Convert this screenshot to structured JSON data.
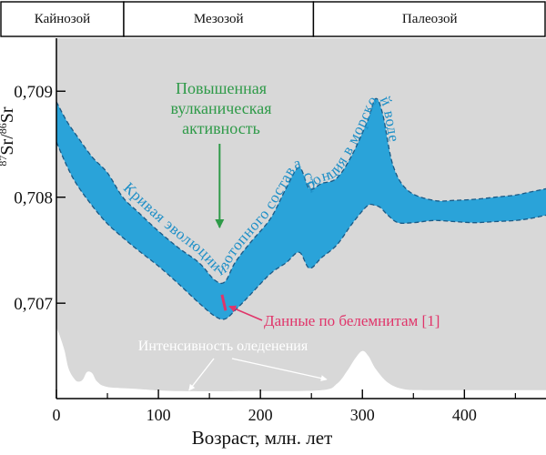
{
  "chart_data": {
    "type": "area",
    "xlabel": "Возраст, млн. лет",
    "ylabel_base": "Sr",
    "ylabel_sup1": "87",
    "ylabel_sup2": "86",
    "ylabel_slash": "/",
    "xlim": [
      0,
      480
    ],
    "ylim": [
      0.7061,
      0.7095
    ],
    "x_ticks": [
      {
        "value": 0,
        "label": "0"
      },
      {
        "value": 100,
        "label": "100"
      },
      {
        "value": 200,
        "label": "200"
      },
      {
        "value": 300,
        "label": "300"
      },
      {
        "value": 400,
        "label": "400"
      }
    ],
    "x_minor_ticks": [
      50,
      150,
      250,
      350,
      450
    ],
    "y_ticks": [
      {
        "value": 0.709,
        "label": "0,709"
      },
      {
        "value": 0.708,
        "label": "0,708"
      },
      {
        "value": 0.707,
        "label": "0,707"
      }
    ],
    "eras": [
      {
        "name": "Кайнозой",
        "start": 0,
        "end": 66
      },
      {
        "name": "Мезозой",
        "start": 66,
        "end": 252
      },
      {
        "name": "Палеозой",
        "start": 252,
        "end": 480
      }
    ],
    "curve_label": "Кривая эволюции изотопного состава стронция в морской воде",
    "strontium_band": {
      "upper": [
        [
          0,
          0.7089
        ],
        [
          10,
          0.70872
        ],
        [
          20,
          0.70858
        ],
        [
          35,
          0.70838
        ],
        [
          50,
          0.70823
        ],
        [
          65,
          0.708
        ],
        [
          80,
          0.70786
        ],
        [
          100,
          0.70768
        ],
        [
          120,
          0.70752
        ],
        [
          140,
          0.70738
        ],
        [
          155,
          0.70722
        ],
        [
          165,
          0.7072
        ],
        [
          175,
          0.70738
        ],
        [
          190,
          0.70757
        ],
        [
          210,
          0.7078
        ],
        [
          225,
          0.70808
        ],
        [
          238,
          0.70828
        ],
        [
          248,
          0.70808
        ],
        [
          260,
          0.70813
        ],
        [
          275,
          0.70818
        ],
        [
          290,
          0.7084
        ],
        [
          305,
          0.70872
        ],
        [
          313,
          0.70893
        ],
        [
          320,
          0.70878
        ],
        [
          330,
          0.7083
        ],
        [
          345,
          0.70806
        ],
        [
          370,
          0.70797
        ],
        [
          390,
          0.70797
        ],
        [
          410,
          0.70798
        ],
        [
          430,
          0.708
        ],
        [
          450,
          0.70802
        ],
        [
          465,
          0.70805
        ],
        [
          480,
          0.70808
        ]
      ],
      "lower": [
        [
          0,
          0.70852
        ],
        [
          10,
          0.7083
        ],
        [
          20,
          0.70812
        ],
        [
          35,
          0.70792
        ],
        [
          50,
          0.70775
        ],
        [
          65,
          0.70762
        ],
        [
          80,
          0.7075
        ],
        [
          100,
          0.70735
        ],
        [
          120,
          0.70718
        ],
        [
          140,
          0.707
        ],
        [
          155,
          0.70688
        ],
        [
          165,
          0.70685
        ],
        [
          175,
          0.70693
        ],
        [
          190,
          0.70708
        ],
        [
          210,
          0.70728
        ],
        [
          225,
          0.70738
        ],
        [
          238,
          0.70748
        ],
        [
          248,
          0.70733
        ],
        [
          260,
          0.70743
        ],
        [
          275,
          0.70755
        ],
        [
          290,
          0.70775
        ],
        [
          305,
          0.70792
        ],
        [
          313,
          0.70792
        ],
        [
          318,
          0.7079
        ],
        [
          325,
          0.70783
        ],
        [
          335,
          0.70776
        ],
        [
          350,
          0.70776
        ],
        [
          370,
          0.70778
        ],
        [
          390,
          0.70777
        ],
        [
          410,
          0.70776
        ],
        [
          430,
          0.70777
        ],
        [
          450,
          0.70778
        ],
        [
          465,
          0.7078
        ],
        [
          480,
          0.70783
        ]
      ]
    },
    "glaciation_series": {
      "name": "Интенсивность оледенения",
      "points": [
        [
          0,
          0.70677
        ],
        [
          3,
          0.7067
        ],
        [
          8,
          0.70655
        ],
        [
          12,
          0.70638
        ],
        [
          18,
          0.70628
        ],
        [
          22,
          0.70626
        ],
        [
          26,
          0.70628
        ],
        [
          30,
          0.70635
        ],
        [
          35,
          0.70634
        ],
        [
          40,
          0.70626
        ],
        [
          50,
          0.70621
        ],
        [
          80,
          0.70619
        ],
        [
          120,
          0.70617
        ],
        [
          200,
          0.70617
        ],
        [
          260,
          0.70618
        ],
        [
          275,
          0.70624
        ],
        [
          285,
          0.70636
        ],
        [
          293,
          0.70648
        ],
        [
          300,
          0.70655
        ],
        [
          306,
          0.7065
        ],
        [
          313,
          0.70638
        ],
        [
          325,
          0.70625
        ],
        [
          340,
          0.70619
        ],
        [
          360,
          0.70618
        ],
        [
          400,
          0.70618
        ],
        [
          480,
          0.70618
        ]
      ]
    },
    "annotations": {
      "volcanic_line1": "Повышенная",
      "volcanic_line2": "вулканическая",
      "volcanic_line3": "активность",
      "volcanic_arrow_x": 160,
      "belemnite_label": "Данные по белемнитам [1]",
      "belemnite_x": 165,
      "belemnite_range": [
        0.70693,
        0.70708
      ],
      "glaciation_arrow_from": 130,
      "glaciation_arrow_to": 265
    },
    "colors": {
      "background": "#d8d8d8",
      "band_fill": "#2aa3d9",
      "band_outline": "#1a5a86",
      "curve_text": "#1e8fc7",
      "volcanic_text": "#2e9a48",
      "belemnite": "#e0356a",
      "glacial_fill": "#ffffff",
      "glacial_text": "#ffffff",
      "frame": "#000000"
    }
  }
}
